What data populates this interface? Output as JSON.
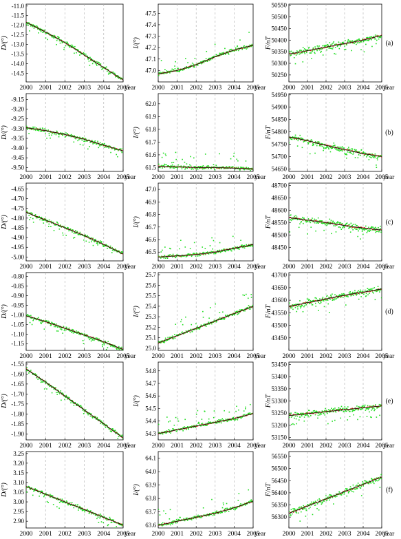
{
  "figure": {
    "x_unit_label": "year",
    "x_ticks": [
      2000,
      2001,
      2002,
      2003,
      2004,
      2005
    ],
    "colors": {
      "daily_points": "#22dd22",
      "monthly_points": "#dd1111",
      "fit_line": "#111111",
      "year_grid": "#aaaaaa"
    },
    "rows": [
      {
        "label": "(a)",
        "D": {
          "ylabel": "D/(°)",
          "ticks": [
            "-11.0",
            "-11.5",
            "-12.0",
            "-12.5",
            "-13.0",
            "-13.5",
            "-14.0",
            "-14.5"
          ],
          "ylim": [
            -14.95,
            -10.9
          ]
        },
        "I": {
          "ylabel": "I/(°)",
          "ticks": [
            "47.5",
            "47.4",
            "47.3",
            "47.2",
            "47.1",
            "47.0"
          ],
          "ylim": [
            46.9,
            47.58
          ]
        },
        "F": {
          "ylabel": "F/nT",
          "ticks": [
            "50550",
            "50500",
            "50450",
            "50400",
            "50350",
            "50300",
            "50250"
          ],
          "ylim": [
            50220,
            50555
          ]
        }
      },
      {
        "label": "(b)",
        "D": {
          "ylabel": "D/(°)",
          "ticks": [
            "-9.15",
            "-9.20",
            "-9.25",
            "-9.30",
            "-9.35",
            "-9.40",
            "-9.45",
            "-9.50"
          ],
          "ylim": [
            -9.52,
            -9.12
          ]
        },
        "I": {
          "ylabel": "I/(°)",
          "ticks": [
            "62.0",
            "61.9",
            "61.8",
            "61.7",
            "61.6",
            "61.5"
          ],
          "ylim": [
            61.47,
            62.08
          ]
        },
        "F": {
          "ylabel": "F/nT",
          "ticks": [
            "54950",
            "54900",
            "54850",
            "54800",
            "54750",
            "54700",
            "54650"
          ],
          "ylim": [
            54640,
            54955
          ]
        }
      },
      {
        "label": "(c)",
        "D": {
          "ylabel": "D/(°)",
          "ticks": [
            "-4.65",
            "-4.70",
            "-4.75",
            "-4.80",
            "-4.85",
            "-4.90",
            "-4.95",
            "-5.00"
          ],
          "ylim": [
            -5.02,
            -4.62
          ]
        },
        "I": {
          "ylabel": "I/(°)",
          "ticks": [
            "47.0",
            "46.9",
            "46.8",
            "46.7",
            "46.6",
            "46.5"
          ],
          "ylim": [
            46.43,
            47.05
          ]
        },
        "F": {
          "ylabel": "F/nT",
          "ticks": [
            "48700",
            "48650",
            "48600",
            "48550",
            "48500",
            "48450"
          ],
          "ylim": [
            48395,
            48710
          ]
        }
      },
      {
        "label": "(d)",
        "D": {
          "ylabel": "D/(°)",
          "ticks": [
            "-0.80",
            "-0.85",
            "-0.90",
            "-0.95",
            "-1.00",
            "-1.05",
            "-1.10",
            "-1.15"
          ],
          "ylim": [
            -1.185,
            -0.78
          ]
        },
        "I": {
          "ylabel": "I/(°)",
          "ticks": [
            "25.7",
            "25.6",
            "25.5",
            "25.4",
            "25.3",
            "25.2",
            "25.1",
            "25.0"
          ],
          "ylim": [
            24.98,
            25.72
          ]
        },
        "F": {
          "ylabel": "F/nT",
          "ticks": [
            "43700",
            "43650",
            "43600",
            "43550",
            "43500",
            "43450"
          ],
          "ylim": [
            43400,
            43710
          ]
        }
      },
      {
        "label": "(e)",
        "D": {
          "ylabel": "D/(°)",
          "ticks": [
            "-1.55",
            "-1.60",
            "-1.65",
            "-1.70",
            "-1.75",
            "-1.80",
            "-1.85",
            "-1.90"
          ],
          "ylim": [
            -1.93,
            -1.54
          ]
        },
        "I": {
          "ylabel": "I/(°)",
          "ticks": [
            "54.8",
            "54.7",
            "54.6",
            "54.5",
            "54.4",
            "54.3"
          ],
          "ylim": [
            54.25,
            54.87
          ]
        },
        "F": {
          "ylabel": "F/nT",
          "ticks": [
            "53450",
            "53400",
            "53350",
            "53300",
            "53250",
            "53200",
            "53150"
          ],
          "ylim": [
            53140,
            53460
          ]
        }
      },
      {
        "label": "(f)",
        "D": {
          "ylabel": "D/(°)",
          "ticks": [
            "3.25",
            "3.20",
            "3.15",
            "3.10",
            "3.05",
            "3.00",
            "2.95",
            "2.90"
          ],
          "ylim": [
            2.865,
            3.26
          ]
        },
        "I": {
          "ylabel": "I/(°)",
          "ticks": [
            "64.1",
            "64.0",
            "63.9",
            "63.8",
            "63.7",
            "63.6"
          ],
          "ylim": [
            63.58,
            64.15
          ]
        },
        "F": {
          "ylabel": "F/nT",
          "ticks": [
            "56550",
            "56500",
            "56450",
            "56400",
            "56350",
            "56300"
          ],
          "ylim": [
            56255,
            56570
          ]
        }
      }
    ]
  },
  "chart_data": [
    {
      "type": "scatter",
      "row": "a",
      "component": "D",
      "ylabel": "D/(°)",
      "xlim": [
        2000,
        2005
      ],
      "ylim": [
        -14.95,
        -10.9
      ],
      "series": [
        {
          "values_yearly": [
            [
              2000,
              -11.85
            ],
            [
              2001,
              -12.35
            ],
            [
              2002,
              -12.9
            ],
            [
              2003,
              -13.55
            ],
            [
              2004,
              -14.2
            ],
            [
              2005,
              -14.85
            ]
          ]
        }
      ]
    },
    {
      "type": "scatter",
      "row": "a",
      "component": "I",
      "ylabel": "I/(°)",
      "xlim": [
        2000,
        2005
      ],
      "ylim": [
        46.9,
        47.58
      ],
      "series": [
        {
          "values_yearly": [
            [
              2000,
              46.97
            ],
            [
              2001,
              47.0
            ],
            [
              2002,
              47.05
            ],
            [
              2003,
              47.12
            ],
            [
              2004,
              47.18
            ],
            [
              2005,
              47.22
            ]
          ]
        }
      ]
    },
    {
      "type": "scatter",
      "row": "a",
      "component": "F",
      "ylabel": "F/nT",
      "xlim": [
        2000,
        2005
      ],
      "ylim": [
        50220,
        50555
      ],
      "series": [
        {
          "values_yearly": [
            [
              2000,
              50340
            ],
            [
              2001,
              50355
            ],
            [
              2002,
              50370
            ],
            [
              2003,
              50385
            ],
            [
              2004,
              50400
            ],
            [
              2005,
              50420
            ]
          ]
        }
      ]
    },
    {
      "type": "scatter",
      "row": "b",
      "component": "D",
      "ylabel": "D/(°)",
      "xlim": [
        2000,
        2005
      ],
      "ylim": [
        -9.52,
        -9.12
      ],
      "series": [
        {
          "values_yearly": [
            [
              2000,
              -9.295
            ],
            [
              2001,
              -9.31
            ],
            [
              2002,
              -9.33
            ],
            [
              2003,
              -9.355
            ],
            [
              2004,
              -9.385
            ],
            [
              2005,
              -9.415
            ]
          ]
        }
      ]
    },
    {
      "type": "scatter",
      "row": "b",
      "component": "I",
      "ylabel": "I/(°)",
      "xlim": [
        2000,
        2005
      ],
      "ylim": [
        61.47,
        62.08
      ],
      "series": [
        {
          "values_yearly": [
            [
              2000,
              61.51
            ],
            [
              2001,
              61.505
            ],
            [
              2002,
              61.5
            ],
            [
              2003,
              61.5
            ],
            [
              2004,
              61.495
            ],
            [
              2005,
              61.49
            ]
          ]
        }
      ]
    },
    {
      "type": "scatter",
      "row": "b",
      "component": "F",
      "ylabel": "F/nT",
      "xlim": [
        2000,
        2005
      ],
      "ylim": [
        54640,
        54955
      ],
      "series": [
        {
          "values_yearly": [
            [
              2000,
              54780
            ],
            [
              2001,
              54765
            ],
            [
              2002,
              54745
            ],
            [
              2003,
              54728
            ],
            [
              2004,
              54712
            ],
            [
              2005,
              54700
            ]
          ]
        }
      ]
    },
    {
      "type": "scatter",
      "row": "c",
      "component": "D",
      "ylabel": "D/(°)",
      "xlim": [
        2000,
        2005
      ],
      "ylim": [
        -5.02,
        -4.62
      ],
      "series": [
        {
          "values_yearly": [
            [
              2000,
              -4.77
            ],
            [
              2001,
              -4.81
            ],
            [
              2002,
              -4.85
            ],
            [
              2003,
              -4.89
            ],
            [
              2004,
              -4.935
            ],
            [
              2005,
              -4.985
            ]
          ]
        }
      ]
    },
    {
      "type": "scatter",
      "row": "c",
      "component": "I",
      "ylabel": "I/(°)",
      "xlim": [
        2000,
        2005
      ],
      "ylim": [
        46.43,
        47.05
      ],
      "series": [
        {
          "values_yearly": [
            [
              2000,
              46.46
            ],
            [
              2001,
              46.47
            ],
            [
              2002,
              46.48
            ],
            [
              2003,
              46.5
            ],
            [
              2004,
              46.53
            ],
            [
              2005,
              46.56
            ]
          ]
        }
      ]
    },
    {
      "type": "scatter",
      "row": "c",
      "component": "F",
      "ylabel": "F/nT",
      "xlim": [
        2000,
        2005
      ],
      "ylim": [
        48395,
        48710
      ],
      "series": [
        {
          "values_yearly": [
            [
              2000,
              48570
            ],
            [
              2001,
              48560
            ],
            [
              2002,
              48550
            ],
            [
              2003,
              48538
            ],
            [
              2004,
              48528
            ],
            [
              2005,
              48520
            ]
          ]
        }
      ]
    },
    {
      "type": "scatter",
      "row": "d",
      "component": "D",
      "ylabel": "D/(°)",
      "xlim": [
        2000,
        2005
      ],
      "ylim": [
        -1.185,
        -0.78
      ],
      "series": [
        {
          "values_yearly": [
            [
              2000,
              -1.005
            ],
            [
              2001,
              -1.035
            ],
            [
              2002,
              -1.07
            ],
            [
              2003,
              -1.105
            ],
            [
              2004,
              -1.14
            ],
            [
              2005,
              -1.18
            ]
          ]
        }
      ]
    },
    {
      "type": "scatter",
      "row": "d",
      "component": "I",
      "ylabel": "I/(°)",
      "xlim": [
        2000,
        2005
      ],
      "ylim": [
        24.98,
        25.72
      ],
      "series": [
        {
          "values_yearly": [
            [
              2000,
              25.05
            ],
            [
              2001,
              25.12
            ],
            [
              2002,
              25.19
            ],
            [
              2003,
              25.26
            ],
            [
              2004,
              25.33
            ],
            [
              2005,
              25.4
            ]
          ]
        }
      ]
    },
    {
      "type": "scatter",
      "row": "d",
      "component": "F",
      "ylabel": "F/nT",
      "xlim": [
        2000,
        2005
      ],
      "ylim": [
        43400,
        43710
      ],
      "series": [
        {
          "values_yearly": [
            [
              2000,
              43575
            ],
            [
              2001,
              43590
            ],
            [
              2002,
              43605
            ],
            [
              2003,
              43620
            ],
            [
              2004,
              43632
            ],
            [
              2005,
              43645
            ]
          ]
        }
      ]
    },
    {
      "type": "scatter",
      "row": "e",
      "component": "D",
      "ylabel": "D/(°)",
      "xlim": [
        2000,
        2005
      ],
      "ylim": [
        -1.93,
        -1.54
      ],
      "series": [
        {
          "values_yearly": [
            [
              2000,
              -1.575
            ],
            [
              2001,
              -1.64
            ],
            [
              2002,
              -1.71
            ],
            [
              2003,
              -1.78
            ],
            [
              2004,
              -1.85
            ],
            [
              2005,
              -1.92
            ]
          ]
        }
      ]
    },
    {
      "type": "scatter",
      "row": "e",
      "component": "I",
      "ylabel": "I/(°)",
      "xlim": [
        2000,
        2005
      ],
      "ylim": [
        54.25,
        54.87
      ],
      "series": [
        {
          "values_yearly": [
            [
              2000,
              54.3
            ],
            [
              2001,
              54.33
            ],
            [
              2002,
              54.36
            ],
            [
              2003,
              54.39
            ],
            [
              2004,
              54.42
            ],
            [
              2005,
              54.46
            ]
          ]
        }
      ]
    },
    {
      "type": "scatter",
      "row": "e",
      "component": "F",
      "ylabel": "F/nT",
      "xlim": [
        2000,
        2005
      ],
      "ylim": [
        53140,
        53460
      ],
      "series": [
        {
          "values_yearly": [
            [
              2000,
              53240
            ],
            [
              2001,
              53248
            ],
            [
              2002,
              53256
            ],
            [
              2003,
              53264
            ],
            [
              2004,
              53272
            ],
            [
              2005,
              53280
            ]
          ]
        }
      ]
    },
    {
      "type": "scatter",
      "row": "f",
      "component": "D",
      "ylabel": "D/(°)",
      "xlim": [
        2000,
        2005
      ],
      "ylim": [
        2.865,
        3.26
      ],
      "series": [
        {
          "values_yearly": [
            [
              2000,
              3.08
            ],
            [
              2001,
              3.04
            ],
            [
              2002,
              3.0
            ],
            [
              2003,
              2.96
            ],
            [
              2004,
              2.92
            ],
            [
              2005,
              2.88
            ]
          ]
        }
      ]
    },
    {
      "type": "scatter",
      "row": "f",
      "component": "I",
      "ylabel": "I/(°)",
      "xlim": [
        2000,
        2005
      ],
      "ylim": [
        63.58,
        64.15
      ],
      "series": [
        {
          "values_yearly": [
            [
              2000,
              63.6
            ],
            [
              2001,
              63.63
            ],
            [
              2002,
              63.66
            ],
            [
              2003,
              63.69
            ],
            [
              2004,
              63.73
            ],
            [
              2005,
              63.78
            ]
          ]
        }
      ]
    },
    {
      "type": "scatter",
      "row": "f",
      "component": "F",
      "ylabel": "F/nT",
      "xlim": [
        2000,
        2005
      ],
      "ylim": [
        56255,
        56570
      ],
      "series": [
        {
          "values_yearly": [
            [
              2000,
              56315
            ],
            [
              2001,
              56345
            ],
            [
              2002,
              56375
            ],
            [
              2003,
              56405
            ],
            [
              2004,
              56435
            ],
            [
              2005,
              56465
            ]
          ]
        }
      ]
    }
  ]
}
